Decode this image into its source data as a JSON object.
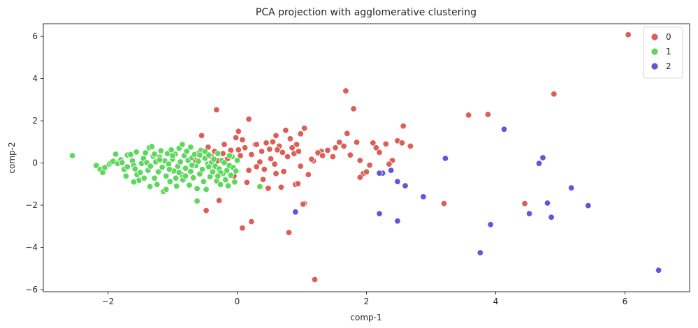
{
  "chart_data": {
    "type": "scatter",
    "title": "PCA projection with agglomerative clustering",
    "xlabel": "comp-1",
    "ylabel": "comp-2",
    "xlim": [
      -3.0,
      7.0
    ],
    "ylim": [
      -6.1,
      6.6
    ],
    "xticks": [
      -2,
      0,
      2,
      4,
      6
    ],
    "yticks": [
      -6,
      -4,
      -2,
      0,
      2,
      4,
      6
    ],
    "grid": false,
    "legend_position": "top-right",
    "series": [
      {
        "name": "0",
        "color": "#db5f57",
        "points": [
          [
            6.05,
            6.08
          ],
          [
            4.9,
            3.27
          ],
          [
            3.88,
            2.3
          ],
          [
            3.58,
            2.27
          ],
          [
            1.68,
            3.42
          ],
          [
            1.8,
            2.57
          ],
          [
            2.57,
            1.75
          ],
          [
            2.48,
            1.05
          ],
          [
            2.68,
            0.8
          ],
          [
            2.4,
            0.12
          ],
          [
            2.3,
            0.9
          ],
          [
            2.1,
            0.95
          ],
          [
            2.15,
            0.72
          ],
          [
            2.2,
            0.5
          ],
          [
            1.85,
            0.98
          ],
          [
            1.9,
            0.12
          ],
          [
            1.95,
            -0.5
          ],
          [
            2.0,
            -0.42
          ],
          [
            1.9,
            -0.68
          ],
          [
            2.35,
            -0.05
          ],
          [
            2.55,
            0.95
          ],
          [
            1.65,
            0.8
          ],
          [
            1.7,
            1.4
          ],
          [
            1.52,
            0.72
          ],
          [
            1.48,
            0.3
          ],
          [
            1.4,
            0.6
          ],
          [
            1.3,
            0.55
          ],
          [
            1.25,
            0.48
          ],
          [
            1.18,
            0.1
          ],
          [
            1.1,
            -0.55
          ],
          [
            1.15,
            0.18
          ],
          [
            0.98,
            -0.15
          ],
          [
            0.9,
            -1.02
          ],
          [
            0.94,
            -0.98
          ],
          [
            1.04,
            -1.92
          ],
          [
            1.04,
            1.65
          ],
          [
            0.98,
            1.38
          ],
          [
            0.92,
            0.88
          ],
          [
            0.85,
            0.72
          ],
          [
            0.82,
            1.15
          ],
          [
            0.78,
            0.3
          ],
          [
            0.72,
            -0.4
          ],
          [
            0.68,
            -1.15
          ],
          [
            0.7,
            0.5
          ],
          [
            0.65,
            0.8
          ],
          [
            0.6,
            1.3
          ],
          [
            0.58,
            -0.05
          ],
          [
            0.52,
            0.2
          ],
          [
            0.5,
            0.65
          ],
          [
            0.48,
            -1.2
          ],
          [
            0.45,
            0.95
          ],
          [
            0.42,
            -0.3
          ],
          [
            0.38,
            0.55
          ],
          [
            0.35,
            0.05
          ],
          [
            0.3,
            -0.18
          ],
          [
            0.28,
            0.88
          ],
          [
            0.22,
            0.4
          ],
          [
            0.18,
            2.08
          ],
          [
            0.18,
            -0.35
          ],
          [
            0.12,
            0.72
          ],
          [
            0.08,
            1.1
          ],
          [
            0.05,
            0.35
          ],
          [
            0.02,
            1.5
          ],
          [
            -0.02,
            1.2
          ],
          [
            -0.05,
            -0.62
          ],
          [
            -0.1,
            0.6
          ],
          [
            -0.15,
            0.2
          ],
          [
            -0.2,
            0.88
          ],
          [
            -0.28,
            -1.78
          ],
          [
            -0.3,
            0.1
          ],
          [
            -0.35,
            0.55
          ],
          [
            -0.4,
            0.3
          ],
          [
            -0.45,
            0.75
          ],
          [
            -0.55,
            1.3
          ],
          [
            -0.6,
            0.45
          ],
          [
            -0.65,
            0.15
          ],
          [
            -0.32,
            2.52
          ],
          [
            -0.48,
            -2.25
          ],
          [
            0.15,
            -0.92
          ],
          [
            0.08,
            -3.08
          ],
          [
            0.22,
            -2.78
          ],
          [
            0.8,
            -3.3
          ],
          [
            1.02,
            -1.95
          ],
          [
            1.2,
            -5.52
          ],
          [
            3.2,
            -1.92
          ],
          [
            4.45,
            -1.92
          ],
          [
            0.4,
            -0.78
          ],
          [
            0.6,
            -0.5
          ],
          [
            0.88,
            0.45
          ],
          [
            1.58,
            0.98
          ],
          [
            1.75,
            0.38
          ],
          [
            2.05,
            -0.1
          ],
          [
            0.55,
            1.0
          ],
          [
            0.75,
            1.55
          ],
          [
            0.62,
            0.62
          ],
          [
            0.3,
            0.88
          ],
          [
            0.02,
            0.62
          ],
          [
            -0.22,
            0.45
          ],
          [
            0.95,
            0.55
          ],
          [
            1.32,
            0.35
          ]
        ]
      },
      {
        "name": "1",
        "color": "#5cd85c",
        "points": [
          [
            -2.55,
            0.35
          ],
          [
            -2.18,
            -0.12
          ],
          [
            -2.12,
            -0.3
          ],
          [
            -2.08,
            -0.45
          ],
          [
            -2.05,
            -0.22
          ],
          [
            -1.98,
            -0.05
          ],
          [
            -1.95,
            0.02
          ],
          [
            -1.92,
            0.08
          ],
          [
            -1.88,
            0.42
          ],
          [
            -1.85,
            -0.02
          ],
          [
            -1.8,
            0.15
          ],
          [
            -1.75,
            -0.3
          ],
          [
            -1.72,
            -0.62
          ],
          [
            -1.7,
            0.38
          ],
          [
            -1.65,
            0.4
          ],
          [
            -1.62,
            0.1
          ],
          [
            -1.6,
            -0.12
          ],
          [
            -1.58,
            -0.28
          ],
          [
            -1.55,
            -0.55
          ],
          [
            -1.52,
            -0.82
          ],
          [
            -1.5,
            -0.45
          ],
          [
            -1.48,
            -0.02
          ],
          [
            -1.45,
            0.22
          ],
          [
            -1.42,
            0.48
          ],
          [
            -1.4,
            0.02
          ],
          [
            -1.38,
            -0.35
          ],
          [
            -1.36,
            0.72
          ],
          [
            -1.34,
            -0.15
          ],
          [
            -1.32,
            0.78
          ],
          [
            -1.3,
            0.32
          ],
          [
            -1.28,
            -0.72
          ],
          [
            -1.26,
            0.05
          ],
          [
            -1.24,
            -1.02
          ],
          [
            -1.22,
            -0.42
          ],
          [
            -1.2,
            0.28
          ],
          [
            -1.18,
            0.58
          ],
          [
            -1.16,
            -0.2
          ],
          [
            -1.14,
            -1.35
          ],
          [
            -1.12,
            0.1
          ],
          [
            -1.1,
            -0.62
          ],
          [
            -1.08,
            0.45
          ],
          [
            -1.06,
            -0.05
          ],
          [
            -1.04,
            -0.88
          ],
          [
            -1.02,
            0.62
          ],
          [
            -1.0,
            0.18
          ],
          [
            -0.98,
            -0.38
          ],
          [
            -0.96,
            0.42
          ],
          [
            -0.94,
            -1.1
          ],
          [
            -0.92,
            -0.15
          ],
          [
            -0.9,
            0.7
          ],
          [
            -0.88,
            0.05
          ],
          [
            -0.86,
            -0.55
          ],
          [
            -0.84,
            -0.8
          ],
          [
            -0.82,
            0.35
          ],
          [
            -0.8,
            -0.25
          ],
          [
            -0.78,
            0.55
          ],
          [
            -0.76,
            0.12
          ],
          [
            -0.74,
            -1.05
          ],
          [
            -0.72,
            -0.4
          ],
          [
            -0.7,
            0.25
          ],
          [
            -0.68,
            -0.7
          ],
          [
            -0.66,
            0.4
          ],
          [
            -0.64,
            -0.12
          ],
          [
            -0.62,
            -1.22
          ],
          [
            -0.6,
            0.08
          ],
          [
            -0.58,
            -0.52
          ],
          [
            -0.56,
            0.6
          ],
          [
            -0.54,
            -0.3
          ],
          [
            -0.52,
            -0.88
          ],
          [
            -0.5,
            0.22
          ],
          [
            -0.48,
            -1.25
          ],
          [
            -0.46,
            -0.05
          ],
          [
            -0.44,
            0.38
          ],
          [
            -0.42,
            -0.65
          ],
          [
            -0.4,
            0.02
          ],
          [
            -0.38,
            -0.42
          ],
          [
            -0.36,
            0.18
          ],
          [
            -0.34,
            -0.15
          ],
          [
            -0.32,
            -0.85
          ],
          [
            -0.3,
            0.45
          ],
          [
            -0.28,
            -0.28
          ],
          [
            -0.26,
            -1.02
          ],
          [
            -0.24,
            0.12
          ],
          [
            -0.22,
            -0.5
          ],
          [
            -0.2,
            0.02
          ],
          [
            -0.18,
            -0.8
          ],
          [
            -0.16,
            -0.35
          ],
          [
            -0.14,
            -1.08
          ],
          [
            -0.12,
            -0.12
          ],
          [
            -0.1,
            -0.58
          ],
          [
            -0.08,
            0.3
          ],
          [
            -0.06,
            -0.22
          ],
          [
            -0.04,
            -0.9
          ],
          [
            -0.02,
            -0.38
          ],
          [
            0.0,
            0.12
          ],
          [
            0.35,
            -1.12
          ],
          [
            -1.6,
            -0.9
          ],
          [
            -1.35,
            -1.12
          ],
          [
            -1.1,
            -1.25
          ],
          [
            -0.95,
            -0.72
          ],
          [
            -0.72,
            0.75
          ],
          [
            -0.58,
            0.38
          ],
          [
            -1.78,
            0.02
          ],
          [
            -1.56,
            0.52
          ],
          [
            -1.44,
            -0.72
          ],
          [
            -1.28,
            0.42
          ],
          [
            -1.05,
            -0.3
          ],
          [
            -0.85,
            0.88
          ],
          [
            -0.62,
            -1.8
          ],
          [
            -0.44,
            -0.18
          ],
          [
            -0.26,
            -0.45
          ],
          [
            -0.12,
            0.35
          ],
          [
            -1.7,
            -0.18
          ],
          [
            -1.2,
            0.15
          ],
          [
            -0.9,
            -0.45
          ],
          [
            -0.7,
            -0.1
          ],
          [
            -0.5,
            0.55
          ],
          [
            -0.3,
            -0.62
          ],
          [
            -1.0,
            0.35
          ],
          [
            -0.8,
            -0.62
          ]
        ]
      },
      {
        "name": "2",
        "color": "#5f57db",
        "points": [
          [
            6.52,
            -5.08
          ],
          [
            5.43,
            -2.02
          ],
          [
            5.17,
            -1.18
          ],
          [
            4.86,
            -2.57
          ],
          [
            4.8,
            -1.9
          ],
          [
            4.73,
            0.25
          ],
          [
            4.67,
            -0.02
          ],
          [
            4.52,
            -2.4
          ],
          [
            4.13,
            1.6
          ],
          [
            3.92,
            -2.92
          ],
          [
            3.76,
            -4.25
          ],
          [
            3.22,
            0.22
          ],
          [
            2.88,
            -1.6
          ],
          [
            2.6,
            -1.08
          ],
          [
            2.48,
            -0.88
          ],
          [
            2.48,
            -2.75
          ],
          [
            2.38,
            -0.35
          ],
          [
            2.25,
            -0.48
          ],
          [
            2.2,
            -2.4
          ],
          [
            2.2,
            -0.48
          ],
          [
            0.9,
            -2.32
          ]
        ]
      }
    ]
  }
}
